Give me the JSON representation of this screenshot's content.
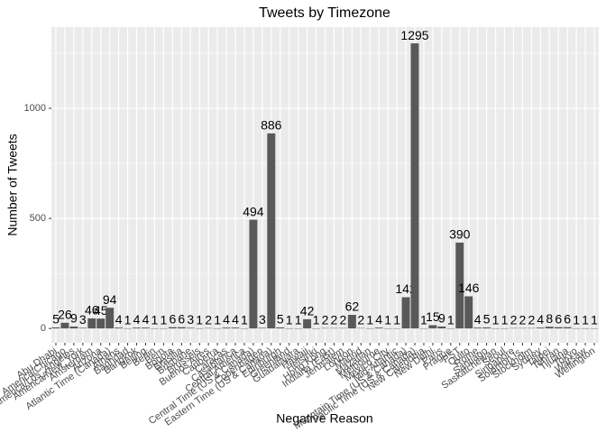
{
  "chart_data": {
    "type": "bar",
    "title": "Tweets by Timezone",
    "x_label": "Negative Reason",
    "y_label": "Number of Tweets",
    "categories": [
      "Abu Dhabi",
      "America/Chicago",
      "America/Los_Angeles",
      "America/New_York",
      "Amsterdam",
      "Arizona",
      "Atlantic Time (Canada)",
      "Athens",
      "Baghdad",
      "Bangkok",
      "Beijing",
      "Berlin",
      "Bern",
      "Bogota",
      "Brasilia",
      "Brisbane",
      "Brussels",
      "Buenos Aires",
      "Canberra",
      "Caracas",
      "Casablanca",
      "Central America",
      "Central Time (US & Canada)",
      "Copenhagen",
      "Eastern Time (US & Canada)",
      "Edinburgh",
      "Greenland",
      "Guadalajara",
      "Hawaii",
      "Helsinki",
      "Hong Kong",
      "Indiana (East)",
      "Jerusalem",
      "London",
      "Madrid",
      "Mazatlan",
      "Melbourne",
      "Mexico City",
      "Mid-Atlantic",
      "Mountain Time (US & Canada)",
      "Pacific Time (US & Canada)",
      "New Caledonia",
      "New Delhi",
      "Paris",
      "Prague",
      "PST",
      "Quito",
      "Rome",
      "Santiago",
      "Saskatchewan",
      "Seoul",
      "Singapore",
      "Solomon Is.",
      "Stockholm",
      "Sydney",
      "Taipei",
      "Tehran",
      "Tijuana",
      "Tokyo",
      "Warsaw",
      "Wellington"
    ],
    "values": [
      5,
      26,
      9,
      3,
      46,
      45,
      94,
      4,
      1,
      4,
      4,
      1,
      1,
      6,
      6,
      3,
      1,
      2,
      1,
      4,
      4,
      1,
      494,
      3,
      886,
      5,
      1,
      1,
      42,
      1,
      2,
      2,
      2,
      62,
      2,
      1,
      4,
      1,
      1,
      142,
      1295,
      1,
      15,
      9,
      1,
      390,
      146,
      4,
      5,
      1,
      1,
      2,
      2,
      2,
      4,
      8,
      6,
      6,
      1,
      1,
      1
    ],
    "color": "#595959",
    "ylim": [
      -65,
      1369
    ],
    "yticks": [
      0,
      500,
      1000
    ],
    "grid": true
  }
}
